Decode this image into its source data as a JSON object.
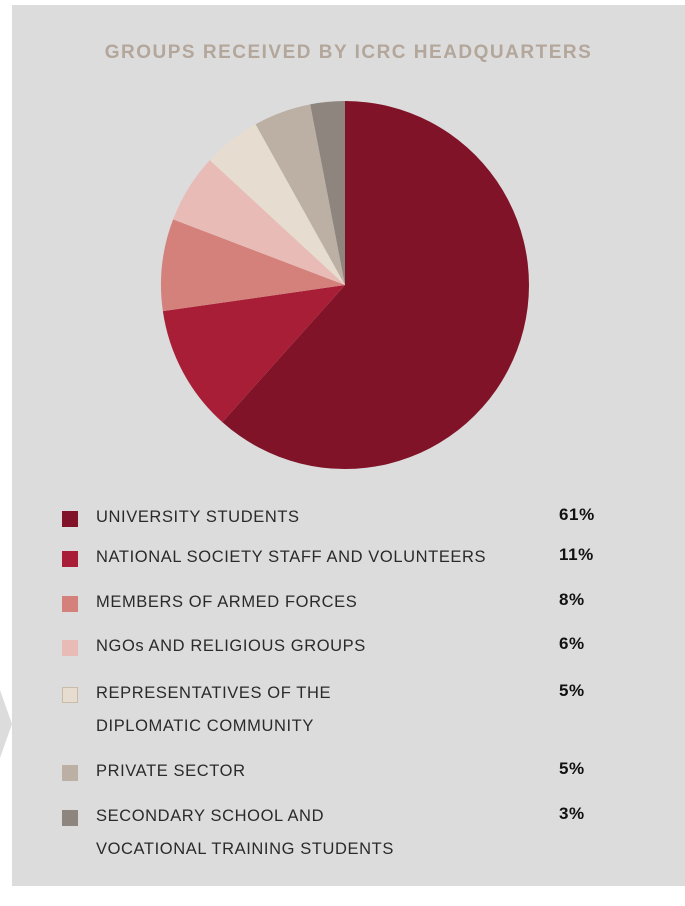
{
  "chart_data": {
    "type": "pie",
    "title": "GROUPS RECEIVED BY ICRC HEADQUARTERS",
    "categories": [
      "UNIVERSITY STUDENTS",
      "NATIONAL SOCIETY STAFF AND VOLUNTEERS",
      "MEMBERS OF ARMED FORCES",
      "NGOs AND RELIGIOUS GROUPS",
      "REPRESENTATIVES OF THE DIPLOMATIC COMMUNITY",
      "PRIVATE SECTOR",
      "SECONDARY SCHOOL AND VOCATIONAL TRAINING STUDENTS"
    ],
    "values": [
      61,
      11,
      8,
      6,
      5,
      5,
      3
    ],
    "value_labels": [
      "61%",
      "11%",
      "8%",
      "6%",
      "5%",
      "5%",
      "3%"
    ],
    "colors": [
      "#811328",
      "#a91e37",
      "#d4817c",
      "#e8bbb6",
      "#e6ddd0",
      "#bcb0a5",
      "#8e867e"
    ],
    "legend_placement": "bottom"
  },
  "legend": [
    {
      "label_lines": [
        "UNIVERSITY STUDENTS"
      ],
      "pct": "61%"
    },
    {
      "label_lines": [
        "NATIONAL SOCIETY STAFF AND VOLUNTEERS"
      ],
      "pct": "11%"
    },
    {
      "label_lines": [
        "MEMBERS OF ARMED FORCES"
      ],
      "pct": "8%"
    },
    {
      "label_lines": [
        "NGOs AND RELIGIOUS GROUPS"
      ],
      "pct": "6%"
    },
    {
      "label_lines": [
        "REPRESENTATIVES OF THE",
        "DIPLOMATIC COMMUNITY"
      ],
      "pct": "5%"
    },
    {
      "label_lines": [
        "PRIVATE SECTOR"
      ],
      "pct": "5%"
    },
    {
      "label_lines": [
        "SECONDARY SCHOOL AND",
        "VOCATIONAL TRAINING STUDENTS"
      ],
      "pct": "3%"
    }
  ]
}
